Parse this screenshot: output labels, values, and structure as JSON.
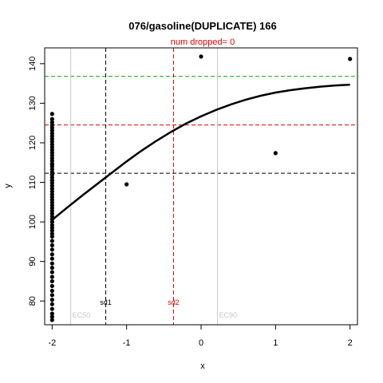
{
  "chart_data": {
    "type": "scatter",
    "title": "076/gasoline(DUPLICATE) 166",
    "subtitle": "num dropped= 0",
    "xlabel": "x",
    "ylabel": "y",
    "xlim": [
      -2.1,
      2.1
    ],
    "ylim": [
      74,
      144
    ],
    "x_ticks": [
      "-2",
      "-1",
      "0",
      "1",
      "2"
    ],
    "y_ticks": [
      "80",
      "90",
      "100",
      "110",
      "120",
      "130",
      "140"
    ],
    "points": {
      "x": [
        -2,
        -2,
        -2,
        -2,
        -2,
        -2,
        -2,
        -2,
        -2,
        -2,
        -2,
        -2,
        -2,
        -2,
        -2,
        -2,
        -2,
        -2,
        -2,
        -2,
        -2,
        -2,
        -2,
        -2,
        -2,
        -2,
        -2,
        -2,
        -2,
        -2,
        -2,
        -2,
        -2,
        -2,
        -2,
        -2,
        -2,
        -2,
        -2,
        -2,
        -2,
        -2,
        -2,
        -2,
        -2,
        -2,
        -2,
        -2,
        -2,
        -2,
        -2,
        -2,
        -2,
        -2,
        -2,
        -2,
        -2,
        -2,
        -2,
        -2,
        -2,
        -2,
        -2,
        -2,
        -2,
        -2,
        -1,
        0,
        1,
        2
      ],
      "y": [
        75.2,
        76.0,
        76.8,
        78.0,
        79.2,
        80.3,
        81.5,
        82.6,
        83.8,
        85.0,
        86.1,
        87.3,
        88.4,
        89.5,
        90.7,
        91.8,
        93.0,
        94.1,
        95.2,
        96.3,
        97.0,
        97.8,
        98.5,
        99.2,
        100.0,
        100.7,
        101.4,
        102.1,
        102.8,
        103.5,
        104.2,
        104.9,
        105.6,
        106.3,
        107.0,
        107.7,
        108.4,
        109.1,
        109.8,
        110.5,
        111.2,
        111.9,
        112.6,
        113.3,
        114.0,
        114.7,
        115.4,
        116.1,
        116.8,
        117.5,
        118.2,
        118.9,
        119.6,
        120.3,
        121.0,
        121.7,
        122.4,
        123.1,
        123.8,
        124.5,
        125.2,
        126.0,
        127.3,
        110.5,
        112.0,
        114.5,
        109.5,
        141.8,
        117.4,
        141.2
      ]
    },
    "fit_curve": {
      "x": [
        -2,
        -1.8,
        -1.6,
        -1.4,
        -1.2,
        -1,
        -0.8,
        -0.6,
        -0.4,
        -0.2,
        0,
        0.2,
        0.4,
        0.6,
        0.8,
        1,
        1.2,
        1.4,
        1.6,
        1.8,
        2
      ],
      "y": [
        100.5,
        103.6,
        106.6,
        109.5,
        112.4,
        115.3,
        118.0,
        120.5,
        122.8,
        124.9,
        126.7,
        128.3,
        129.7,
        130.9,
        131.9,
        132.7,
        133.3,
        133.8,
        134.2,
        134.5,
        134.7
      ]
    },
    "reference_lines": {
      "horizontal": [
        {
          "y": 136.8,
          "color": "#00aa00"
        },
        {
          "y": 124.5,
          "color": "#dd0000"
        },
        {
          "y": 112.3,
          "color": "#000000"
        }
      ],
      "vertical": [
        {
          "x": -1.28,
          "color": "#000000",
          "label": "sd1"
        },
        {
          "x": -0.37,
          "color": "#dd0000",
          "label": "sd2"
        },
        {
          "x": -1.75,
          "color": "#c8c8c8",
          "label": "EC50"
        },
        {
          "x": 0.22,
          "color": "#c8c8c8",
          "label": "EC90"
        }
      ]
    },
    "colors": {
      "title": "#000000",
      "subtitle": "#dd0000",
      "points": "#000000",
      "curve": "#000000"
    },
    "grid": false,
    "legend": "none"
  }
}
